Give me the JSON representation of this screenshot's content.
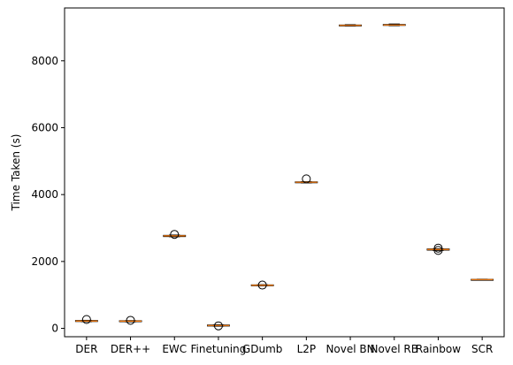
{
  "chart_data": {
    "type": "box",
    "title": "",
    "xlabel": "",
    "ylabel": "Time Taken (s)",
    "ylim": [
      -250,
      9580
    ],
    "yticks": [
      0,
      2000,
      4000,
      6000,
      8000
    ],
    "categories": [
      "DER",
      "DER++",
      "EWC",
      "Finetuning",
      "GDumb",
      "L2P",
      "Novel BN",
      "Novel RB",
      "Rainbow",
      "SCR"
    ],
    "boxes": [
      {
        "category": "DER",
        "q1": 205,
        "median": 220,
        "q3": 235,
        "whisker_low": 200,
        "whisker_high": 240,
        "outliers": [
          265
        ]
      },
      {
        "category": "DER++",
        "q1": 200,
        "median": 215,
        "q3": 228,
        "whisker_low": 195,
        "whisker_high": 232,
        "outliers": [
          240
        ]
      },
      {
        "category": "EWC",
        "q1": 2745,
        "median": 2765,
        "q3": 2780,
        "whisker_low": 2740,
        "whisker_high": 2790,
        "outliers": [
          2810
        ]
      },
      {
        "category": "Finetuning",
        "q1": 70,
        "median": 85,
        "q3": 100,
        "whisker_low": 65,
        "whisker_high": 105,
        "outliers": [
          75
        ]
      },
      {
        "category": "GDumb",
        "q1": 1280,
        "median": 1290,
        "q3": 1300,
        "whisker_low": 1275,
        "whisker_high": 1305,
        "outliers": [
          1295
        ]
      },
      {
        "category": "L2P",
        "q1": 4355,
        "median": 4370,
        "q3": 4380,
        "whisker_low": 4350,
        "whisker_high": 4385,
        "outliers": [
          4470
        ]
      },
      {
        "category": "Novel BN",
        "q1": 9050,
        "median": 9060,
        "q3": 9070,
        "whisker_low": 9040,
        "whisker_high": 9080,
        "outliers": []
      },
      {
        "category": "Novel RB",
        "q1": 9060,
        "median": 9070,
        "q3": 9085,
        "whisker_low": 9050,
        "whisker_high": 9100,
        "outliers": []
      },
      {
        "category": "Rainbow",
        "q1": 2340,
        "median": 2360,
        "q3": 2375,
        "whisker_low": 2330,
        "whisker_high": 2380,
        "outliers": [
          2400,
          2330
        ]
      },
      {
        "category": "SCR",
        "q1": 1455,
        "median": 1460,
        "q3": 1465,
        "whisker_low": 1450,
        "whisker_high": 1470,
        "outliers": []
      }
    ],
    "colors": {
      "box": "#000000",
      "median": "#ff7f0e",
      "outlier": "#000000"
    },
    "grid": false,
    "legend": "none"
  }
}
